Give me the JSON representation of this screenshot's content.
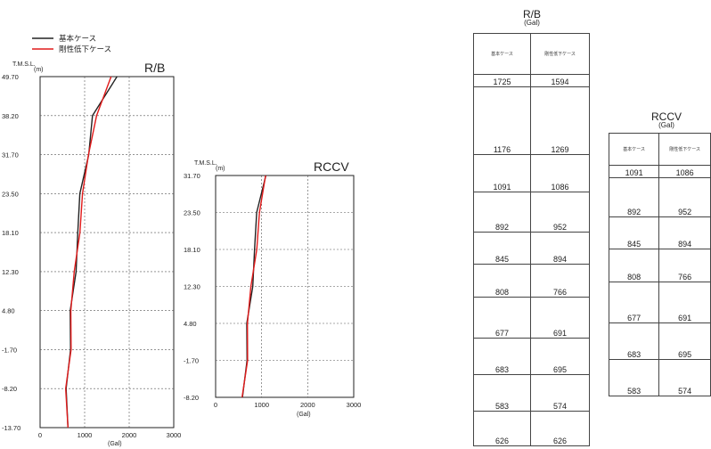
{
  "legend": {
    "items": [
      {
        "label": "基本ケース",
        "color": "#222222"
      },
      {
        "label": "剛性低下ケース",
        "color": "#e11a1a"
      }
    ]
  },
  "charts": {
    "rb": {
      "title": "R/B",
      "ylabel_1": "T.M.S.L.",
      "ylabel_2": "(m)",
      "xunit": "(Gal)"
    },
    "rccv": {
      "title": "RCCV",
      "ylabel_1": "T.M.S.L.",
      "ylabel_2": "(m)",
      "xunit": "(Gal)"
    }
  },
  "tables": {
    "rb": {
      "title": "R/B",
      "unit": "(Gal)",
      "headers": [
        "基本ケース",
        "剛性低下ケース"
      ],
      "rows": [
        [
          "1725",
          "1594"
        ],
        [
          "1176",
          "1269"
        ],
        [
          "1091",
          "1086"
        ],
        [
          "892",
          "952"
        ],
        [
          "845",
          "894"
        ],
        [
          "808",
          "766"
        ],
        [
          "677",
          "691"
        ],
        [
          "683",
          "695"
        ],
        [
          "583",
          "574"
        ],
        [
          "626",
          "626"
        ]
      ]
    },
    "rccv": {
      "title": "RCCV",
      "unit": "(Gal)",
      "headers": [
        "基本ケース",
        "剛性低下ケース"
      ],
      "rows": [
        [
          "1091",
          "1086"
        ],
        [
          "892",
          "952"
        ],
        [
          "845",
          "894"
        ],
        [
          "808",
          "766"
        ],
        [
          "677",
          "691"
        ],
        [
          "683",
          "695"
        ],
        [
          "583",
          "574"
        ]
      ]
    }
  },
  "chart_data": [
    {
      "type": "line",
      "title": "R/B",
      "xlabel": "(Gal)",
      "ylabel": "T.M.S.L. (m)",
      "xlim": [
        0,
        3000
      ],
      "xticks": [
        0,
        1000,
        2000,
        3000
      ],
      "yticks": [
        49.7,
        38.2,
        31.7,
        23.5,
        18.1,
        12.3,
        4.8,
        -1.7,
        -8.2,
        -13.7
      ],
      "ytick_labels": [
        "49.70",
        "38.20",
        "31.70",
        "23.50",
        "18.10",
        "12.30",
        "4.80",
        "-1.70",
        "-8.20",
        "-13.70"
      ],
      "grid": true,
      "series": [
        {
          "name": "基本ケース",
          "color": "#222222",
          "x": [
            1725,
            1176,
            1091,
            892,
            845,
            808,
            677,
            683,
            583,
            626
          ],
          "y": [
            49.7,
            38.2,
            31.7,
            23.5,
            18.1,
            12.3,
            4.8,
            -1.7,
            -8.2,
            -13.7
          ]
        },
        {
          "name": "剛性低下ケース",
          "color": "#e11a1a",
          "x": [
            1594,
            1269,
            1086,
            952,
            894,
            766,
            691,
            695,
            574,
            626
          ],
          "y": [
            49.7,
            38.2,
            31.7,
            23.5,
            18.1,
            12.3,
            4.8,
            -1.7,
            -8.2,
            -13.7
          ]
        }
      ]
    },
    {
      "type": "line",
      "title": "RCCV",
      "xlabel": "(Gal)",
      "ylabel": "T.M.S.L. (m)",
      "xlim": [
        0,
        3000
      ],
      "xticks": [
        0,
        1000,
        2000,
        3000
      ],
      "yticks": [
        31.7,
        23.5,
        18.1,
        12.3,
        4.8,
        -1.7,
        -8.2
      ],
      "ytick_labels": [
        "31.70",
        "23.50",
        "18.10",
        "12.30",
        "4.80",
        "-1.70",
        "-8.20"
      ],
      "grid": true,
      "series": [
        {
          "name": "基本ケース",
          "color": "#222222",
          "x": [
            1091,
            892,
            845,
            808,
            677,
            683,
            583
          ],
          "y": [
            31.7,
            23.5,
            18.1,
            12.3,
            4.8,
            -1.7,
            -8.2
          ]
        },
        {
          "name": "剛性低下ケース",
          "color": "#e11a1a",
          "x": [
            1086,
            952,
            894,
            766,
            691,
            695,
            574
          ],
          "y": [
            31.7,
            23.5,
            18.1,
            12.3,
            4.8,
            -1.7,
            -8.2
          ]
        }
      ]
    }
  ]
}
